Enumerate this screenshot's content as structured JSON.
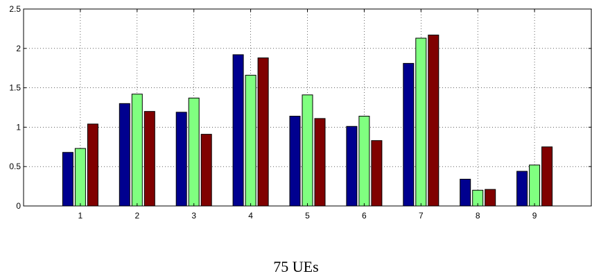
{
  "chart_data": {
    "type": "bar",
    "categories": [
      "1",
      "2",
      "3",
      "4",
      "5",
      "6",
      "7",
      "8",
      "9"
    ],
    "series": [
      {
        "values": [
          0.68,
          1.3,
          1.19,
          1.92,
          1.14,
          1.01,
          1.81,
          0.34,
          0.44
        ]
      },
      {
        "values": [
          0.73,
          1.42,
          1.37,
          1.66,
          1.41,
          1.14,
          2.13,
          0.2,
          0.52
        ]
      },
      {
        "values": [
          1.04,
          1.2,
          0.91,
          1.88,
          1.11,
          0.83,
          2.17,
          0.21,
          0.75
        ]
      }
    ],
    "ylim": [
      0,
      2.5
    ],
    "yticks": [
      "0",
      "0.5",
      "1",
      "1.5",
      "2",
      "2.5"
    ],
    "grid": true,
    "colors": [
      "#00008F",
      "#80FF80",
      "#800000"
    ],
    "xlabel": "75 UEs"
  }
}
